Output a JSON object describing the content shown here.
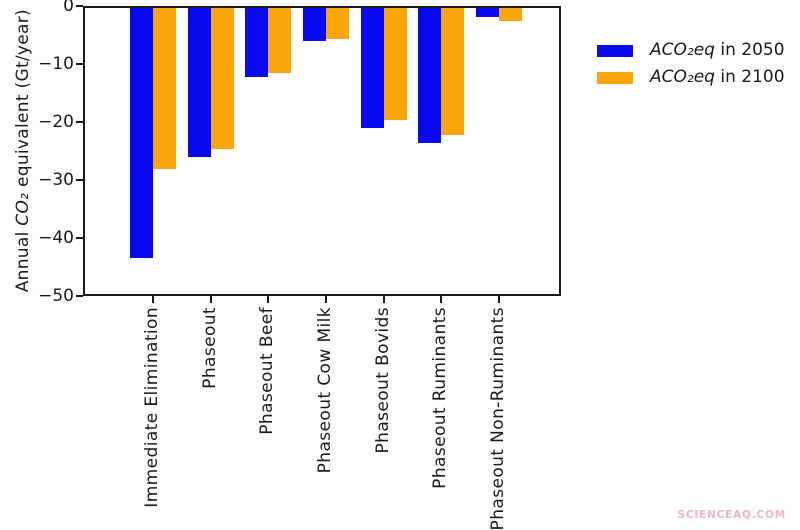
{
  "chart_data": {
    "type": "bar",
    "title": "",
    "categories": [
      "Immediate Elimination",
      "Phaseout",
      "Phaseout Beef",
      "Phaseout Cow Milk",
      "Phaseout Bovids",
      "Phaseout Ruminants",
      "Phaseout Non-Ruminants"
    ],
    "series": [
      {
        "name": "ACO₂eq in 2050",
        "label_italic": "ACO₂eq",
        "label_rest": " in 2050",
        "color": "#0a0af0",
        "values": [
          -43.5,
          -26.1,
          -12.3,
          -6.1,
          -21.0,
          -23.7,
          -1.9
        ]
      },
      {
        "name": "ACO₂eq in 2100",
        "label_italic": "ACO₂eq",
        "label_rest": " in 2100",
        "color": "#faa50a",
        "values": [
          -28.1,
          -24.6,
          -11.6,
          -5.7,
          -19.6,
          -22.2,
          -2.6
        ]
      }
    ],
    "xlabel": "",
    "ylabel_pre": "Annual ",
    "ylabel_italic": "CO₂",
    "ylabel_post": " equivalent (Gt/year)",
    "ylim": [
      -50,
      0
    ],
    "yticks": [
      0,
      -10,
      -20,
      -30,
      -40,
      -50
    ],
    "bar_width_frac": 0.4,
    "grid": false,
    "legend_position": "outside-upper-right"
  },
  "colors": {
    "axis": "#1a1a1a",
    "background": "#ffffff",
    "watermark": "#f0b6bc"
  },
  "watermark": {
    "text": "SCIENCEAQ.COM"
  }
}
